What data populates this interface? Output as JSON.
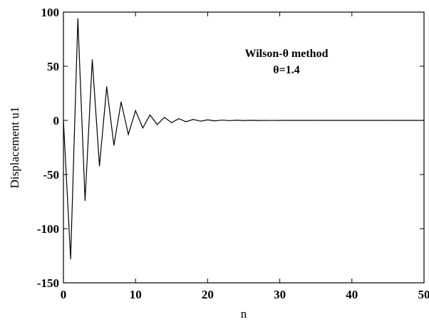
{
  "chart_data": {
    "type": "line",
    "title": "",
    "xlabel": "n",
    "ylabel": "Displacement  u1",
    "xlim": [
      0,
      50
    ],
    "ylim": [
      -150,
      100
    ],
    "xticks": [
      "0",
      "10",
      "20",
      "30",
      "40",
      "50"
    ],
    "yticks": [
      "100",
      "50",
      "0",
      "-50",
      "-100",
      "-150"
    ],
    "grid": false,
    "annotations": [
      "Wilson-θ method",
      "θ=1.4"
    ],
    "line_color": "#000000",
    "series": [
      {
        "x": [
          0,
          1,
          2,
          3,
          4,
          5,
          6,
          7,
          8,
          9,
          10,
          11,
          12,
          13,
          14,
          15,
          16,
          17,
          18,
          19,
          20,
          21,
          22,
          23,
          24,
          25,
          26,
          27,
          28,
          29,
          30,
          31,
          32,
          33,
          34,
          35,
          36,
          37,
          38,
          39,
          40,
          41,
          42,
          43,
          44,
          45,
          46,
          47,
          48,
          49,
          50
        ],
        "values": [
          0,
          -128,
          94,
          -74,
          56,
          -42,
          31,
          -23,
          17,
          -13,
          9,
          -7,
          5,
          -3.8,
          2.8,
          -2.1,
          1.6,
          -1.2,
          0.9,
          -0.7,
          0.5,
          -0.4,
          0.3,
          -0.2,
          0.15,
          -0.1,
          0.08,
          -0.06,
          0.04,
          -0.03,
          0.02,
          -0.015,
          0.01,
          -0.008,
          0.006,
          -0.004,
          0.003,
          -0.002,
          0.001,
          -0.001,
          0,
          0,
          0,
          0,
          0,
          0,
          0,
          0,
          0,
          0,
          0
        ]
      }
    ]
  }
}
